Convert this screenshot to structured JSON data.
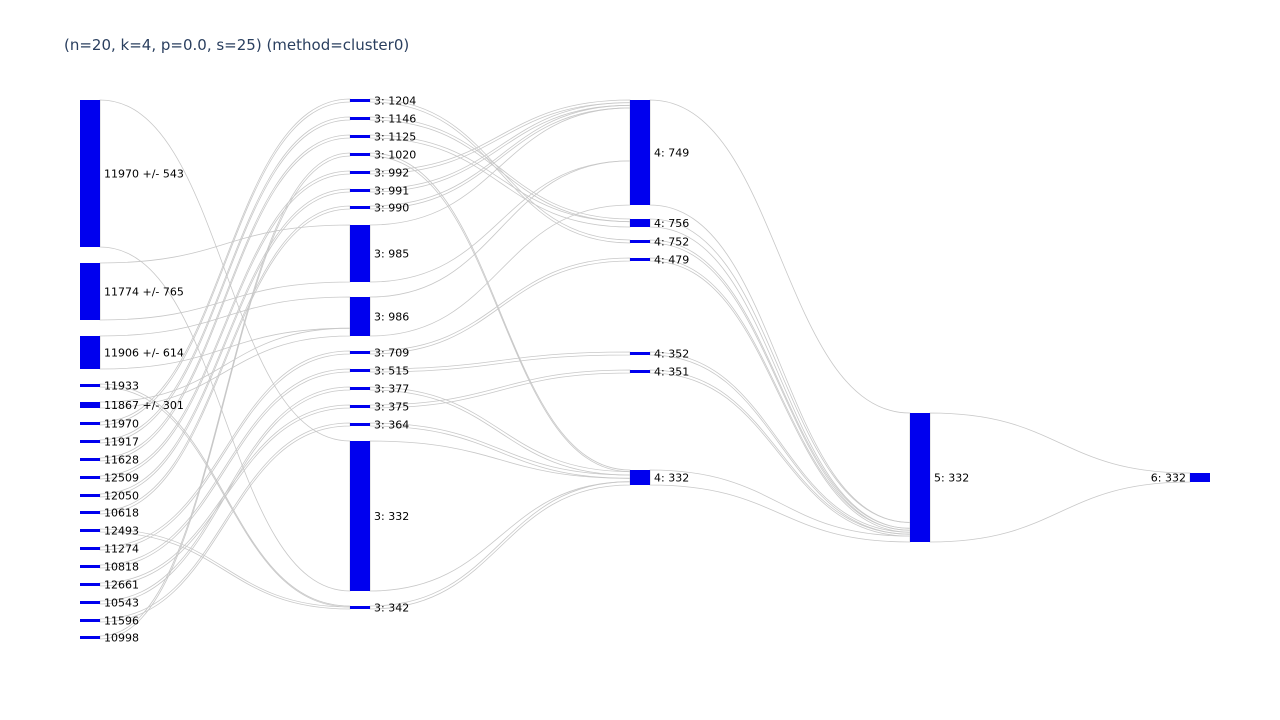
{
  "chart_data": {
    "type": "sankey",
    "title": "(n=20, k=4, p=0.0, s=25) (method=cluster0)",
    "node_color": "#0000ee",
    "link_color": "#c8c8c8",
    "nodes": [
      {
        "id": "a1",
        "label": "11970 +/- 543",
        "column": 0
      },
      {
        "id": "a2",
        "label": "11774 +/- 765",
        "column": 0
      },
      {
        "id": "a3",
        "label": "11906 +/- 614",
        "column": 0
      },
      {
        "id": "a4",
        "label": "11933",
        "column": 0
      },
      {
        "id": "a5",
        "label": "11867 +/- 301",
        "column": 0
      },
      {
        "id": "a6",
        "label": "11970",
        "column": 0
      },
      {
        "id": "a7",
        "label": "11917",
        "column": 0
      },
      {
        "id": "a8",
        "label": "11628",
        "column": 0
      },
      {
        "id": "a9",
        "label": "12509",
        "column": 0
      },
      {
        "id": "a10",
        "label": "12050",
        "column": 0
      },
      {
        "id": "a11",
        "label": "10618",
        "column": 0
      },
      {
        "id": "a12",
        "label": "12493",
        "column": 0
      },
      {
        "id": "a13",
        "label": "11274",
        "column": 0
      },
      {
        "id": "a14",
        "label": "10818",
        "column": 0
      },
      {
        "id": "a15",
        "label": "12661",
        "column": 0
      },
      {
        "id": "a16",
        "label": "10543",
        "column": 0
      },
      {
        "id": "a17",
        "label": "11596",
        "column": 0
      },
      {
        "id": "a18",
        "label": "10998",
        "column": 0
      },
      {
        "id": "b1",
        "label": "3: 1204",
        "column": 1
      },
      {
        "id": "b2",
        "label": "3: 1146",
        "column": 1
      },
      {
        "id": "b3",
        "label": "3: 1125",
        "column": 1
      },
      {
        "id": "b4",
        "label": "3: 1020",
        "column": 1
      },
      {
        "id": "b5",
        "label": "3: 992",
        "column": 1
      },
      {
        "id": "b6",
        "label": "3: 991",
        "column": 1
      },
      {
        "id": "b7",
        "label": "3: 990",
        "column": 1
      },
      {
        "id": "b8",
        "label": "3: 985",
        "column": 1
      },
      {
        "id": "b9",
        "label": "3: 986",
        "column": 1
      },
      {
        "id": "b10",
        "label": "3: 709",
        "column": 1
      },
      {
        "id": "b11",
        "label": "3: 515",
        "column": 1
      },
      {
        "id": "b12",
        "label": "3: 377",
        "column": 1
      },
      {
        "id": "b13",
        "label": "3: 375",
        "column": 1
      },
      {
        "id": "b14",
        "label": "3: 364",
        "column": 1
      },
      {
        "id": "b15",
        "label": "3: 332",
        "column": 1
      },
      {
        "id": "b16",
        "label": "3: 342",
        "column": 1
      },
      {
        "id": "c1",
        "label": "4: 749",
        "column": 2
      },
      {
        "id": "c2",
        "label": "4: 756",
        "column": 2
      },
      {
        "id": "c3",
        "label": "4: 752",
        "column": 2
      },
      {
        "id": "c4",
        "label": "4: 479",
        "column": 2
      },
      {
        "id": "c5",
        "label": "4: 352",
        "column": 2
      },
      {
        "id": "c6",
        "label": "4: 351",
        "column": 2
      },
      {
        "id": "c7",
        "label": "4: 332",
        "column": 2
      },
      {
        "id": "d1",
        "label": "5: 332",
        "column": 3
      },
      {
        "id": "e1",
        "label": "6: 332",
        "column": 4
      }
    ],
    "links": [
      {
        "source": "a1",
        "target": "b15",
        "value": 8
      },
      {
        "source": "a2",
        "target": "b8",
        "value": 3
      },
      {
        "source": "a3",
        "target": "b9",
        "value": 2
      },
      {
        "source": "a4",
        "target": "b16",
        "value": 0.1
      },
      {
        "source": "a5",
        "target": "b9",
        "value": 0.5
      },
      {
        "source": "a6",
        "target": "b1",
        "value": 0.05
      },
      {
        "source": "a7",
        "target": "b2",
        "value": 0.05
      },
      {
        "source": "a8",
        "target": "b3",
        "value": 0.1
      },
      {
        "source": "a9",
        "target": "b5",
        "value": 0.1
      },
      {
        "source": "a10",
        "target": "b6",
        "value": 0.1
      },
      {
        "source": "a11",
        "target": "b7",
        "value": 0.1
      },
      {
        "source": "a12",
        "target": "b16",
        "value": 0.2
      },
      {
        "source": "a13",
        "target": "b10",
        "value": 0.1
      },
      {
        "source": "a14",
        "target": "b11",
        "value": 0.1
      },
      {
        "source": "a15",
        "target": "b13",
        "value": 0.1
      },
      {
        "source": "a16",
        "target": "b12",
        "value": 0.1
      },
      {
        "source": "a17",
        "target": "b14",
        "value": 0.1
      },
      {
        "source": "a18",
        "target": "b4",
        "value": 0.05
      },
      {
        "source": "b1",
        "target": "c3",
        "value": 0.1
      },
      {
        "source": "b2",
        "target": "c2",
        "value": 0.1
      },
      {
        "source": "b3",
        "target": "c2",
        "value": 0.2
      },
      {
        "source": "b4",
        "target": "c7",
        "value": 0.05
      },
      {
        "source": "b5",
        "target": "c1",
        "value": 0.15
      },
      {
        "source": "b6",
        "target": "c1",
        "value": 0.15
      },
      {
        "source": "b7",
        "target": "c1",
        "value": 0.15
      },
      {
        "source": "b8",
        "target": "c1",
        "value": 3
      },
      {
        "source": "b9",
        "target": "c1",
        "value": 2.5
      },
      {
        "source": "b10",
        "target": "c4",
        "value": 0.1
      },
      {
        "source": "b11",
        "target": "c5",
        "value": 0.1
      },
      {
        "source": "b12",
        "target": "c7",
        "value": 0.1
      },
      {
        "source": "b13",
        "target": "c6",
        "value": 0.1
      },
      {
        "source": "b14",
        "target": "c7",
        "value": 0.1
      },
      {
        "source": "b15",
        "target": "c7",
        "value": 0.1
      },
      {
        "source": "b16",
        "target": "c7",
        "value": 0.1
      },
      {
        "source": "c1",
        "target": "d1",
        "value": 5.6
      },
      {
        "source": "c2",
        "target": "d1",
        "value": 0.3
      },
      {
        "source": "c3",
        "target": "d1",
        "value": 0.1
      },
      {
        "source": "c4",
        "target": "d1",
        "value": 0.1
      },
      {
        "source": "c5",
        "target": "d1",
        "value": 0.1
      },
      {
        "source": "c6",
        "target": "d1",
        "value": 0.1
      },
      {
        "source": "c7",
        "target": "d1",
        "value": 0.3
      },
      {
        "source": "d1",
        "target": "e1",
        "value": 0.4
      }
    ]
  }
}
